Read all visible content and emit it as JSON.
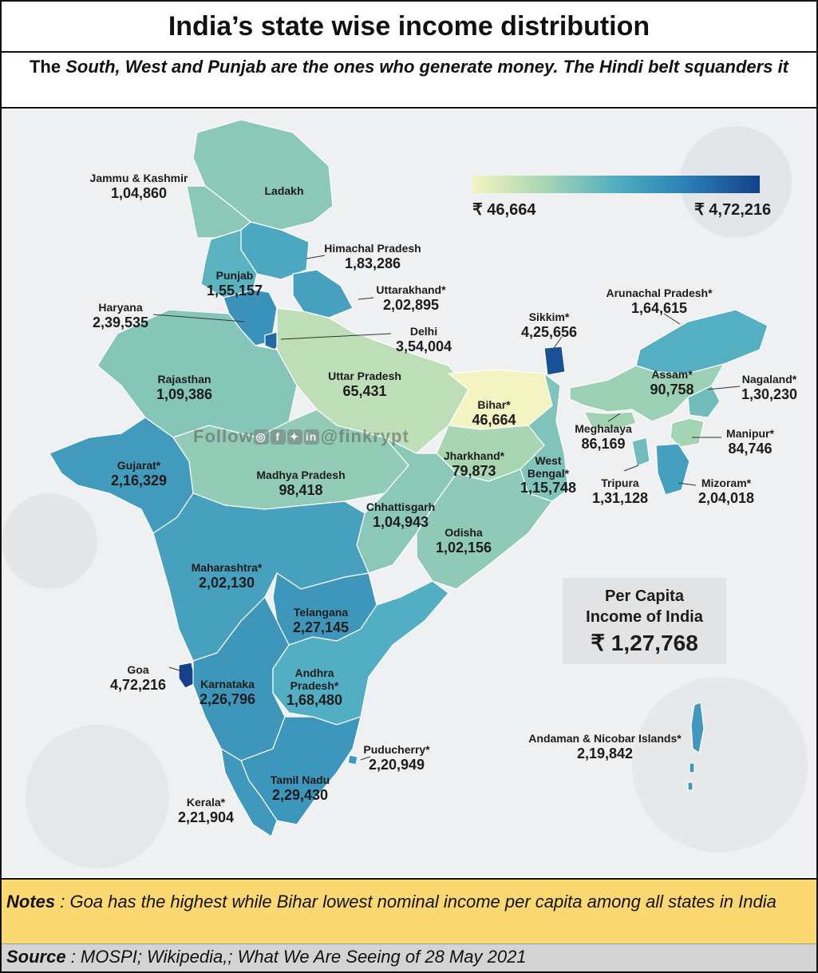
{
  "header": {
    "title": "India’s state wise income distribution",
    "subtitle_lead": "The ",
    "subtitle_emph": "South, West and Punjab are the ones who generate money.  The Hindi belt squanders it"
  },
  "legend": {
    "min": "₹ 46,664",
    "max": "₹ 4,72,216",
    "colors": [
      "#f3f4c2",
      "#a8d6b2",
      "#52aec2",
      "#2a7fb4",
      "#14418a"
    ]
  },
  "watermark": {
    "follow": "Follow",
    "handle": "@finkrypt",
    "icons": [
      "instagram-icon",
      "facebook-icon",
      "twitter-icon",
      "linkedin-icon"
    ]
  },
  "states": [
    {
      "name": "Jammu & Kashmir",
      "value": "1,04,860",
      "num": 104860
    },
    {
      "name": "Ladakh",
      "value": "",
      "num": null
    },
    {
      "name": "Himachal Pradesh",
      "value": "1,83,286",
      "num": 183286
    },
    {
      "name": "Punjab",
      "value": "1,55,157",
      "num": 155157
    },
    {
      "name": "Uttarakhand*",
      "value": "2,02,895",
      "num": 202895
    },
    {
      "name": "Haryana",
      "value": "2,39,535",
      "num": 239535
    },
    {
      "name": "Delhi",
      "value": "3,54,004",
      "num": 354004
    },
    {
      "name": "Rajasthan",
      "value": "1,09,386",
      "num": 109386
    },
    {
      "name": "Uttar Pradesh",
      "value": "65,431",
      "num": 65431
    },
    {
      "name": "Bihar*",
      "value": "46,664",
      "num": 46664
    },
    {
      "name": "Sikkim*",
      "value": "4,25,656",
      "num": 425656
    },
    {
      "name": "Arunachal Pradesh*",
      "value": "1,64,615",
      "num": 164615
    },
    {
      "name": "Assam*",
      "value": "90,758",
      "num": 90758
    },
    {
      "name": "Nagaland*",
      "value": "1,30,230",
      "num": 130230
    },
    {
      "name": "Meghalaya",
      "value": "86,169",
      "num": 86169
    },
    {
      "name": "Manipur*",
      "value": "84,746",
      "num": 84746
    },
    {
      "name": "Tripura",
      "value": "1,31,128",
      "num": 131128
    },
    {
      "name": "Mizoram*",
      "value": "2,04,018",
      "num": 204018
    },
    {
      "name": "Gujarat*",
      "value": "2,16,329",
      "num": 216329
    },
    {
      "name": "Madhya Pradesh",
      "value": "98,418",
      "num": 98418
    },
    {
      "name": "Jharkhand*",
      "value": "79,873",
      "num": 79873
    },
    {
      "name": "West Bengal*",
      "value": "1,15,748",
      "num": 115748
    },
    {
      "name": "Chhattisgarh",
      "value": "1,04,943",
      "num": 104943
    },
    {
      "name": "Odisha",
      "value": "1,02,156",
      "num": 102156
    },
    {
      "name": "Maharashtra*",
      "value": "2,02,130",
      "num": 202130
    },
    {
      "name": "Telangana",
      "value": "2,27,145",
      "num": 227145
    },
    {
      "name": "Goa",
      "value": "4,72,216",
      "num": 472216
    },
    {
      "name": "Karnataka",
      "value": "2,26,796",
      "num": 226796
    },
    {
      "name": "Andhra Pradesh*",
      "value": "1,68,480",
      "num": 168480
    },
    {
      "name": "Puducherry*",
      "value": "2,20,949",
      "num": 220949
    },
    {
      "name": "Tamil Nadu",
      "value": "2,29,430",
      "num": 229430
    },
    {
      "name": "Kerala*",
      "value": "2,21,904",
      "num": 221904
    },
    {
      "name": "Andaman & Nicobar Islands*",
      "value": "2,19,842",
      "num": 219842
    }
  ],
  "labels": {
    "jk_name": "Jammu & Kashmir",
    "jk_value": "1,04,860",
    "ladakh_name": "Ladakh",
    "hp_name": "Himachal Pradesh",
    "hp_value": "1,83,286",
    "punjab_name": "Punjab",
    "punjab_value": "1,55,157",
    "uk_name": "Uttarakhand*",
    "uk_value": "2,02,895",
    "haryana_name": "Haryana",
    "haryana_value": "2,39,535",
    "delhi_name": "Delhi",
    "delhi_value": "3,54,004",
    "raj_name": "Rajasthan",
    "raj_value": "1,09,386",
    "up_name": "Uttar Pradesh",
    "up_value": "65,431",
    "bihar_name": "Bihar*",
    "bihar_value": "46,664",
    "sikkim_name": "Sikkim*",
    "sikkim_value": "4,25,656",
    "arunachal_name": "Arunachal Pradesh*",
    "arunachal_value": "1,64,615",
    "assam_name": "Assam*",
    "assam_value": "90,758",
    "nagaland_name": "Nagaland*",
    "nagaland_value": "1,30,230",
    "meghalaya_name": "Meghalaya",
    "meghalaya_value": "86,169",
    "manipur_name": "Manipur*",
    "manipur_value": "84,746",
    "tripura_name": "Tripura",
    "tripura_value": "1,31,128",
    "mizoram_name": "Mizoram*",
    "mizoram_value": "2,04,018",
    "gujarat_name": "Gujarat*",
    "gujarat_value": "2,16,329",
    "mp_name": "Madhya Pradesh",
    "mp_value": "98,418",
    "jharkhand_name": "Jharkhand*",
    "jharkhand_value": "79,873",
    "wb_name1": "West",
    "wb_name2": "Bengal*",
    "wb_value": "1,15,748",
    "chh_name": "Chhattisgarh",
    "chh_value": "1,04,943",
    "odisha_name": "Odisha",
    "odisha_value": "1,02,156",
    "maha_name": "Maharashtra*",
    "maha_value": "2,02,130",
    "telangana_name": "Telangana",
    "telangana_value": "2,27,145",
    "goa_name": "Goa",
    "goa_value": "4,72,216",
    "karnataka_name": "Karnataka",
    "karnataka_value": "2,26,796",
    "ap_name1": "Andhra",
    "ap_name2": "Pradesh*",
    "ap_value": "1,68,480",
    "pud_name": "Puducherry*",
    "pud_value": "2,20,949",
    "tn_name": "Tamil Nadu",
    "tn_value": "2,29,430",
    "kerala_name": "Kerala*",
    "kerala_value": "2,21,904",
    "andaman_name": "Andaman & Nicobar Islands*",
    "andaman_value": "2,19,842"
  },
  "per_capita": {
    "line1": "Per Capita",
    "line2": "Income of India",
    "value": "₹ 1,27,768"
  },
  "notes": {
    "label": "Notes",
    "text": " : Goa has the highest while Bihar lowest nominal income per capita among all states in  India"
  },
  "source": {
    "label": "Source",
    "text": " : MOSPI;  Wikipedia,; What We Are Seeing of 28 May 2021"
  }
}
